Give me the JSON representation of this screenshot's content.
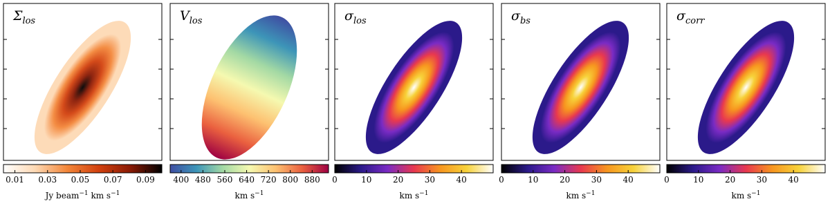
{
  "panels": [
    {
      "symbol": "Σ",
      "subscript": "los",
      "colormap": [
        "#ffffff",
        "#fdd9b4",
        "#f3873a",
        "#d2410e",
        "#8a1a04",
        "#000000"
      ],
      "lim": [
        0.003,
        0.1
      ],
      "ticks": [
        0.01,
        0.03,
        0.05,
        0.07,
        0.09
      ],
      "unit": [
        {
          "text": "Jy beam"
        },
        {
          "text": "−1",
          "sup": true
        },
        {
          "text": " km s"
        },
        {
          "text": "−1",
          "sup": true
        }
      ]
    },
    {
      "symbol": "V",
      "subscript": "los",
      "colormap": [
        "#3f4ea2",
        "#3d95b8",
        "#a3d9a4",
        "#f5f9b0",
        "#fdc171",
        "#ea603f",
        "#9e0142"
      ],
      "lim": [
        360,
        940
      ],
      "ticks": [
        400,
        480,
        560,
        640,
        720,
        800,
        880
      ],
      "unit": [
        {
          "text": "km s"
        },
        {
          "text": "−1",
          "sup": true
        }
      ]
    },
    {
      "symbol": "σ",
      "subscript": "los",
      "colormap": [
        "#000000",
        "#2b1a8a",
        "#7a2bc4",
        "#e8384f",
        "#f7961f",
        "#f7d23a",
        "#ffffff"
      ],
      "lim": [
        0,
        50
      ],
      "ticks": [
        0,
        10,
        20,
        30,
        40
      ],
      "unit": [
        {
          "text": "km s"
        },
        {
          "text": "−1",
          "sup": true
        }
      ]
    },
    {
      "symbol": "σ",
      "subscript": "bs",
      "colormap": [
        "#000000",
        "#2b1a8a",
        "#7a2bc4",
        "#e8384f",
        "#f7961f",
        "#f7d23a",
        "#ffffff"
      ],
      "lim": [
        0,
        50
      ],
      "ticks": [
        0,
        10,
        20,
        30,
        40
      ],
      "unit": [
        {
          "text": "km s"
        },
        {
          "text": "−1",
          "sup": true
        }
      ]
    },
    {
      "symbol": "σ",
      "subscript": "corr",
      "colormap": [
        "#000000",
        "#2b1a8a",
        "#7a2bc4",
        "#e8384f",
        "#f7961f",
        "#f7d23a",
        "#ffffff"
      ],
      "lim": [
        0,
        50
      ],
      "ticks": [
        0,
        10,
        20,
        30,
        40
      ],
      "unit": [
        {
          "text": "km s"
        },
        {
          "text": "−1",
          "sup": true
        }
      ]
    }
  ]
}
